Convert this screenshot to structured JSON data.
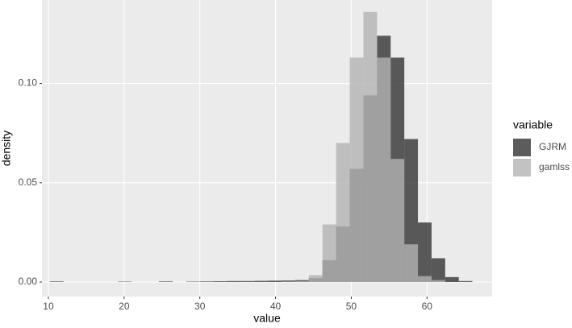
{
  "chart_data": {
    "type": "histogram",
    "x_label": "value",
    "y_label": "density",
    "bins": [
      10.2,
      12,
      13.8,
      15.6,
      17.4,
      19.2,
      21,
      22.8,
      24.6,
      26.4,
      28.2,
      30,
      31.8,
      33.6,
      35.4,
      37.2,
      39,
      40.8,
      42.6,
      44.4,
      46.2,
      48,
      49.8,
      51.6,
      53.4,
      55.2,
      57,
      58.8,
      60.6,
      62.4,
      64.2,
      66
    ],
    "series": [
      {
        "name": "GJRM",
        "color": "#333333",
        "values": [
          0.0003,
          0,
          0,
          0,
          0,
          0.0002,
          0,
          0,
          0.0003,
          0,
          0.0002,
          0.0003,
          0.0004,
          0.0005,
          0.0005,
          0.0006,
          0.0007,
          0.0008,
          0.001,
          0.002,
          0.011,
          0.028,
          0.057,
          0.094,
          0.124,
          0.113,
          0.072,
          0.03,
          0.012,
          0.0025,
          0.0005
        ]
      },
      {
        "name": "gamlss",
        "color": "#b3b3b3",
        "values": [
          0,
          0,
          0,
          0,
          0,
          0,
          0,
          0,
          0,
          0,
          0,
          0,
          0,
          0,
          0,
          0,
          0,
          0.0003,
          0.0005,
          0.0035,
          0.029,
          0.07,
          0.113,
          0.136,
          0.113,
          0.062,
          0.019,
          0.003,
          0.001,
          0,
          0
        ]
      }
    ],
    "opacity": 0.8,
    "xlim": [
      9.15,
      68.6
    ],
    "xticks": [
      10,
      20,
      30,
      40,
      50,
      60
    ],
    "ylim": [
      -0.0073,
      0.142
    ],
    "yticks": [
      {
        "value": 0,
        "label": "0.00"
      },
      {
        "value": 0.05,
        "label": "0.05"
      },
      {
        "value": 0.1,
        "label": "0.10"
      }
    ],
    "grid": true,
    "legend_title": "variable",
    "legend": "right"
  }
}
